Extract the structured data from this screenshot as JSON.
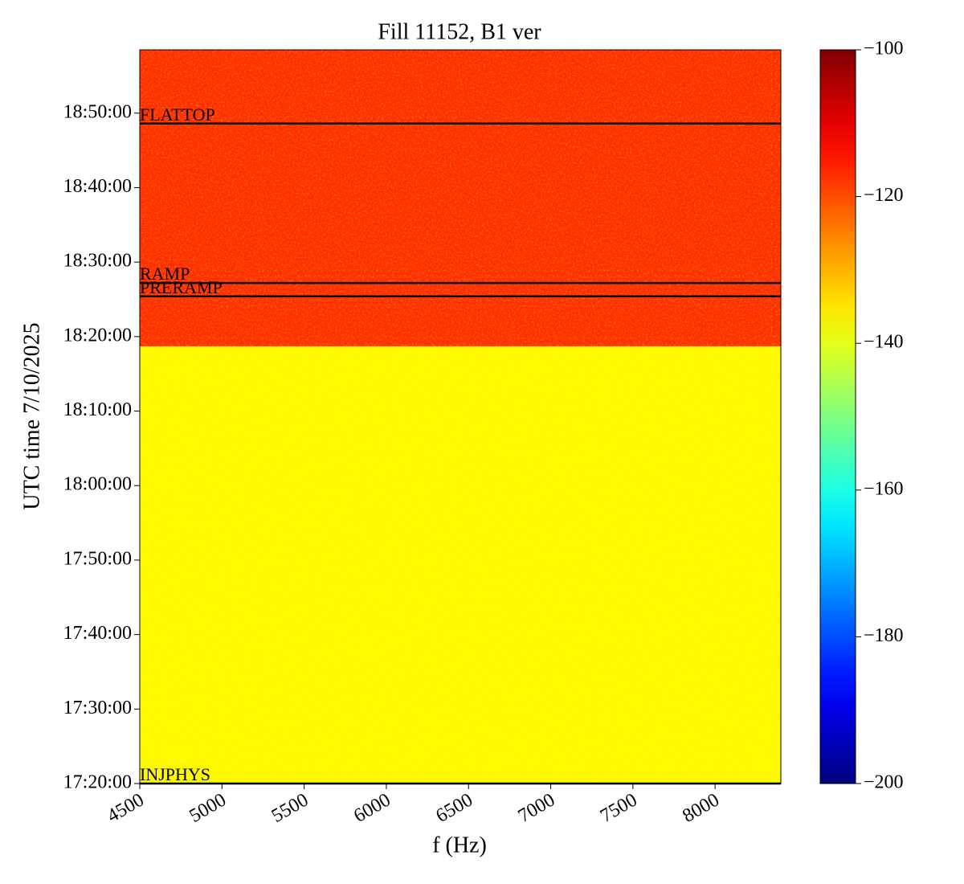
{
  "chart_data": {
    "type": "spectrogram",
    "title": "Fill 11152, B1 ver",
    "xlabel": "f (Hz)",
    "ylabel": "UTC time 7/10/2025",
    "xlim": [
      4500,
      8400
    ],
    "xticks": [
      4500,
      5000,
      5500,
      6000,
      6500,
      7000,
      7500,
      8000
    ],
    "ylim": [
      62400,
      68310
    ],
    "yticks": [
      {
        "value": 62400,
        "label": "17:20:00"
      },
      {
        "value": 63000,
        "label": "17:30:00"
      },
      {
        "value": 63600,
        "label": "17:40:00"
      },
      {
        "value": 64200,
        "label": "17:50:00"
      },
      {
        "value": 64800,
        "label": "18:00:00"
      },
      {
        "value": 65400,
        "label": "18:10:00"
      },
      {
        "value": 66000,
        "label": "18:20:00"
      },
      {
        "value": 66600,
        "label": "18:30:00"
      },
      {
        "value": 67200,
        "label": "18:40:00"
      },
      {
        "value": 67800,
        "label": "18:50:00"
      }
    ],
    "regions": [
      {
        "y0": 62400,
        "y1": 65922,
        "value": -137
      },
      {
        "y0": 65922,
        "y1": 68310,
        "value": -117
      }
    ],
    "annotations": [
      {
        "label": "FLATTOP",
        "y": 67716
      },
      {
        "label": "RAMP",
        "y": 66432
      },
      {
        "label": "PRERAMP",
        "y": 66324
      },
      {
        "label": "INJPHYS",
        "y": 62400
      }
    ],
    "colormap": "jet",
    "clim": [
      -200,
      -100
    ],
    "cticks": [
      {
        "value": -200,
        "label": "−200"
      },
      {
        "value": -180,
        "label": "−180"
      },
      {
        "value": -160,
        "label": "−160"
      },
      {
        "value": -140,
        "label": "−140"
      },
      {
        "value": -120,
        "label": "−120"
      },
      {
        "value": -100,
        "label": "−100"
      }
    ]
  }
}
